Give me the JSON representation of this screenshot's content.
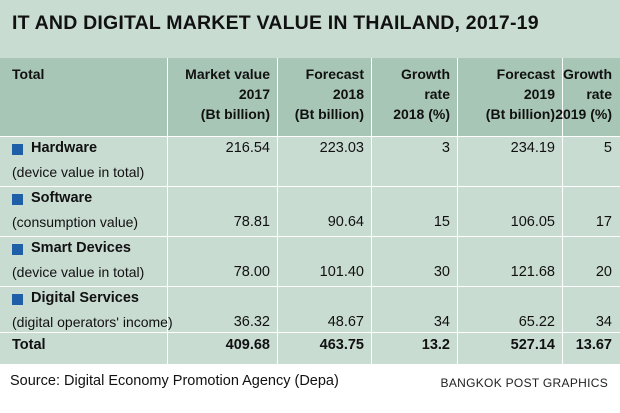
{
  "chart_data": {
    "type": "table",
    "title": "IT AND DIGITAL MARKET VALUE IN THAILAND, 2017-19",
    "columns": [
      "Total",
      "Market value\n2017\n(Bt billion)",
      "Forecast\n2018\n(Bt billion)",
      "Growth\nrate\n2018 (%)",
      "Forecast\n2019\n(Bt billion)",
      "Growth\nrate\n2019 (%)"
    ],
    "rows": [
      {
        "category": "Hardware",
        "note": "(device value in total)",
        "values": [
          "216.54",
          "223.03",
          "3",
          "234.19",
          "5"
        ]
      },
      {
        "category": "Software",
        "note": "(consumption value)",
        "values": [
          "78.81",
          "90.64",
          "15",
          "106.05",
          "17"
        ]
      },
      {
        "category": "Smart Devices",
        "note": "(device value in total)",
        "values": [
          "78.00",
          "101.40",
          "30",
          "121.68",
          "20"
        ]
      },
      {
        "category": "Digital Services",
        "note": "(digital operators' income)",
        "values": [
          "36.32",
          "48.67",
          "34",
          "65.22",
          "34"
        ]
      }
    ],
    "total": {
      "label": "Total",
      "values": [
        "409.68",
        "463.75",
        "13.2",
        "527.14",
        "13.67"
      ]
    },
    "source": "Source: Digital Economy Promotion Agency (Depa)",
    "credit": "BANGKOK POST GRAPHICS"
  },
  "colors": {
    "panel": "#c9dcd2",
    "header_band": "#a8c6b6",
    "bullet": "#1f5fa8",
    "grid": "#ffffff"
  }
}
